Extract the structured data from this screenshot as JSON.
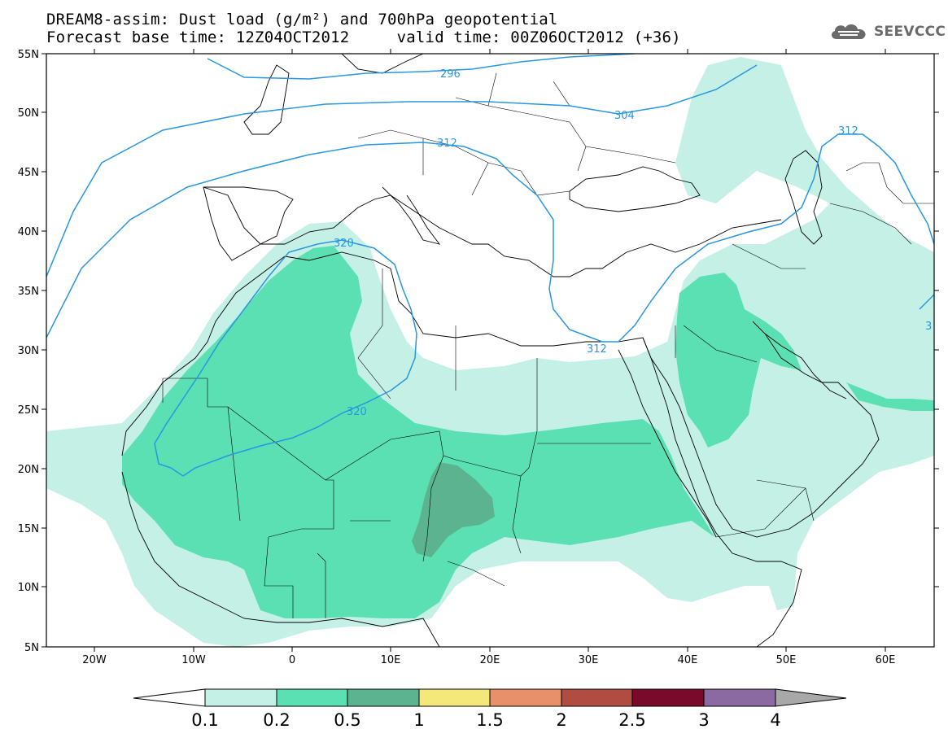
{
  "header": {
    "title_line1": "DREAM8-assim: Dust load (g/m²) and 700hPa geopotential",
    "title_line2": "Forecast base time: 12Z04OCT2012     valid time: 00Z06OCT2012 (+36)"
  },
  "logo": {
    "text": "SEEVCCC",
    "icon": "cloud-icon"
  },
  "map": {
    "lat_labels": [
      "55N",
      "50N",
      "45N",
      "40N",
      "35N",
      "30N",
      "25N",
      "20N",
      "15N",
      "10N",
      "5N"
    ],
    "lon_labels": [
      "20W",
      "10W",
      "0",
      "10E",
      "20E",
      "30E",
      "40E",
      "50E",
      "60E"
    ],
    "contour_labels": [
      "296",
      "304",
      "312",
      "312",
      "312",
      "320",
      "320",
      "3"
    ],
    "colors": {
      "dust_0_1": "#c4f0e6",
      "dust_0_2": "#5be0b4",
      "dust_0_5": "#5bb48f",
      "contour": "#2897e0",
      "coast": "#000000"
    }
  },
  "colorbar": {
    "labels": [
      "0.1",
      "0.2",
      "0.5",
      "1",
      "1.5",
      "2",
      "2.5",
      "3",
      "4"
    ],
    "colors": [
      "#ffffff",
      "#c4f0e6",
      "#5be0b4",
      "#5bb48f",
      "#f5e87a",
      "#e8906a",
      "#b04c42",
      "#7a0a2c",
      "#8a6aa0",
      "#a8a8a8"
    ]
  }
}
